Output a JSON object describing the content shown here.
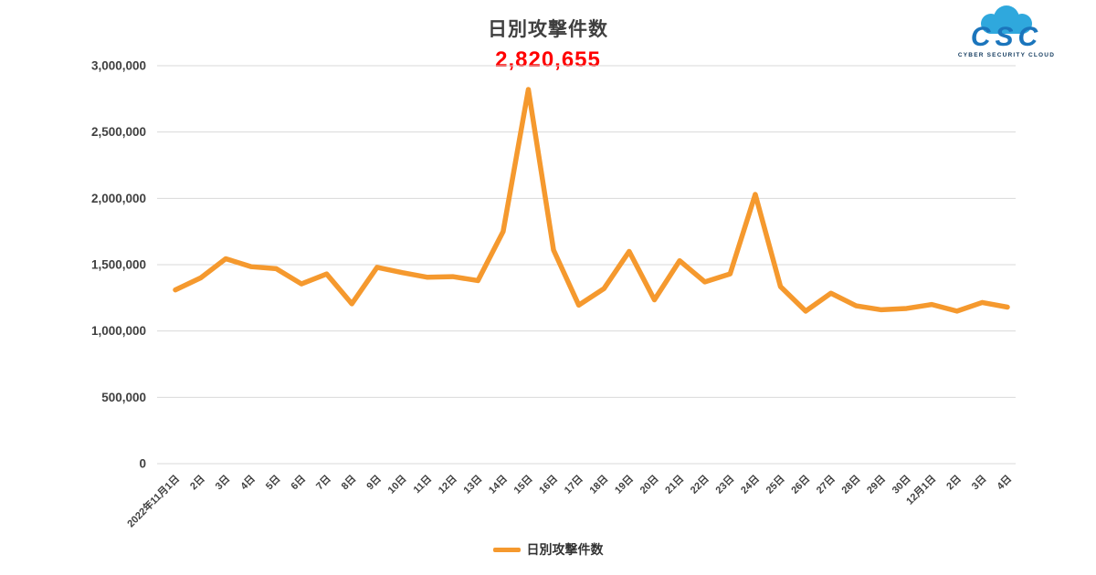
{
  "header": {
    "title": "日別攻撃件数",
    "peak_value": "2,820,655"
  },
  "logo": {
    "text": "CSC",
    "subtext": "CYBER SECURITY CLOUD",
    "cloud_color": "#2fa8dd",
    "text_color": "#1b75bc"
  },
  "legend": {
    "label": "日別攻撃件数"
  },
  "colors": {
    "line": "#f5992e",
    "grid": "#d9d9d9",
    "axis_text": "#404040",
    "annotation": "#ff0000"
  },
  "chart_data": {
    "type": "line",
    "title": "日別攻撃件数",
    "x": [
      "2022年11月1日",
      "2日",
      "3日",
      "4日",
      "5日",
      "6日",
      "7日",
      "8日",
      "9日",
      "10日",
      "11日",
      "12日",
      "13日",
      "14日",
      "15日",
      "16日",
      "17日",
      "18日",
      "19日",
      "20日",
      "21日",
      "22日",
      "23日",
      "24日",
      "25日",
      "26日",
      "27日",
      "28日",
      "29日",
      "30日",
      "12月1日",
      "2日",
      "3日",
      "4日"
    ],
    "series": [
      {
        "name": "日別攻撃件数",
        "color": "#f5992e",
        "values": [
          1310000,
          1400000,
          1545000,
          1485000,
          1470000,
          1355000,
          1430000,
          1205000,
          1480000,
          1440000,
          1405000,
          1410000,
          1380000,
          1750000,
          2820655,
          1610000,
          1195000,
          1320000,
          1600000,
          1235000,
          1530000,
          1370000,
          1430000,
          2030000,
          1335000,
          1150000,
          1285000,
          1190000,
          1160000,
          1170000,
          1200000,
          1150000,
          1215000,
          1180000
        ]
      }
    ],
    "ylim": [
      0,
      3000000
    ],
    "ytick_interval": 500000,
    "grid": true,
    "legend_position": "bottom",
    "annotation": {
      "text": "2,820,655",
      "series_index": 0,
      "point_index": 14,
      "color": "#ff0000"
    }
  }
}
